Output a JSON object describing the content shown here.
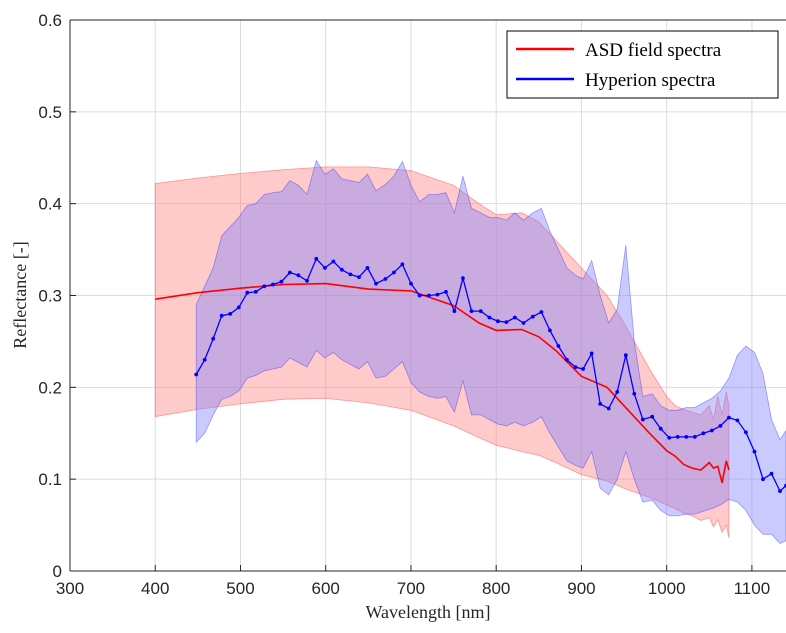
{
  "chart_data": {
    "type": "line",
    "title": "",
    "xlabel": "Wavelength [nm]",
    "ylabel": "Reflectance [-]",
    "xlim": [
      300,
      1140
    ],
    "ylim": [
      0,
      0.6
    ],
    "xticks": [
      300,
      400,
      500,
      600,
      700,
      800,
      900,
      1000,
      1100
    ],
    "yticks": [
      0,
      0.1,
      0.2,
      0.3,
      0.4,
      0.5,
      0.6
    ],
    "xtick_labels": [
      "300",
      "400",
      "500",
      "600",
      "700",
      "800",
      "900",
      "1000",
      "1100"
    ],
    "ytick_labels": [
      "0",
      "0.1",
      "0.2",
      "0.3",
      "0.4",
      "0.5",
      "0.6"
    ],
    "grid": true,
    "legend_position": "top-right",
    "series": [
      {
        "name": "ASD field spectra",
        "color": "#ff0000",
        "band_color": "#ff8080",
        "x": [
          400,
          450,
          500,
          550,
          600,
          650,
          700,
          750,
          780,
          800,
          830,
          850,
          870,
          900,
          930,
          950,
          980,
          1000,
          1010,
          1020,
          1030,
          1040,
          1050,
          1055,
          1060,
          1065,
          1070,
          1073
        ],
        "y": [
          0.296,
          0.303,
          0.308,
          0.312,
          0.313,
          0.307,
          0.305,
          0.289,
          0.27,
          0.262,
          0.263,
          0.255,
          0.24,
          0.212,
          0.2,
          0.18,
          0.15,
          0.131,
          0.125,
          0.116,
          0.112,
          0.11,
          0.118,
          0.112,
          0.114,
          0.096,
          0.12,
          0.11
        ],
        "upper": [
          0.422,
          0.428,
          0.433,
          0.437,
          0.44,
          0.44,
          0.436,
          0.42,
          0.4,
          0.388,
          0.39,
          0.38,
          0.36,
          0.33,
          0.3,
          0.27,
          0.22,
          0.19,
          0.18,
          0.176,
          0.173,
          0.17,
          0.18,
          0.165,
          0.19,
          0.17,
          0.195,
          0.18
        ],
        "lower": [
          0.168,
          0.176,
          0.182,
          0.187,
          0.188,
          0.183,
          0.175,
          0.158,
          0.145,
          0.137,
          0.13,
          0.126,
          0.118,
          0.105,
          0.098,
          0.09,
          0.08,
          0.072,
          0.068,
          0.063,
          0.06,
          0.055,
          0.058,
          0.048,
          0.056,
          0.042,
          0.05,
          0.036
        ]
      },
      {
        "name": "Hyperion spectra",
        "color": "#0000ff",
        "band_color": "#8080ff",
        "x": [
          448,
          458,
          468,
          478,
          488,
          498,
          508,
          518,
          528,
          538,
          548,
          558,
          568,
          578,
          589,
          599,
          609,
          619,
          629,
          639,
          649,
          659,
          670,
          680,
          690,
          700,
          710,
          721,
          731,
          741,
          751,
          761,
          771,
          782,
          792,
          802,
          812,
          822,
          832,
          843,
          853,
          863,
          873,
          883,
          893,
          902,
          912,
          922,
          932,
          942,
          952,
          962,
          972,
          983,
          993,
          1003,
          1013,
          1023,
          1033,
          1043,
          1053,
          1063,
          1073,
          1083,
          1093,
          1103,
          1113,
          1123,
          1133,
          1140
        ],
        "y": [
          0.214,
          0.23,
          0.253,
          0.278,
          0.28,
          0.287,
          0.303,
          0.304,
          0.31,
          0.312,
          0.315,
          0.325,
          0.322,
          0.316,
          0.34,
          0.33,
          0.337,
          0.328,
          0.323,
          0.32,
          0.33,
          0.313,
          0.318,
          0.325,
          0.334,
          0.313,
          0.3,
          0.3,
          0.301,
          0.304,
          0.283,
          0.319,
          0.283,
          0.283,
          0.276,
          0.272,
          0.271,
          0.276,
          0.27,
          0.277,
          0.282,
          0.262,
          0.245,
          0.23,
          0.222,
          0.22,
          0.237,
          0.182,
          0.177,
          0.195,
          0.235,
          0.193,
          0.165,
          0.168,
          0.155,
          0.145,
          0.146,
          0.146,
          0.146,
          0.15,
          0.153,
          0.158,
          0.167,
          0.164,
          0.151,
          0.13,
          0.1,
          0.106,
          0.087,
          0.093
        ],
        "upper": [
          0.29,
          0.31,
          0.33,
          0.365,
          0.375,
          0.385,
          0.398,
          0.4,
          0.41,
          0.412,
          0.413,
          0.425,
          0.42,
          0.41,
          0.447,
          0.432,
          0.438,
          0.427,
          0.425,
          0.423,
          0.432,
          0.414,
          0.421,
          0.43,
          0.446,
          0.42,
          0.402,
          0.41,
          0.41,
          0.412,
          0.39,
          0.43,
          0.395,
          0.39,
          0.385,
          0.385,
          0.382,
          0.39,
          0.382,
          0.39,
          0.395,
          0.37,
          0.35,
          0.33,
          0.322,
          0.318,
          0.338,
          0.3,
          0.27,
          0.285,
          0.355,
          0.25,
          0.19,
          0.193,
          0.18,
          0.175,
          0.175,
          0.178,
          0.178,
          0.183,
          0.188,
          0.196,
          0.21,
          0.235,
          0.245,
          0.238,
          0.215,
          0.165,
          0.143,
          0.153
        ],
        "lower": [
          0.14,
          0.15,
          0.17,
          0.187,
          0.19,
          0.196,
          0.21,
          0.213,
          0.218,
          0.22,
          0.222,
          0.232,
          0.227,
          0.222,
          0.24,
          0.232,
          0.238,
          0.23,
          0.225,
          0.22,
          0.228,
          0.21,
          0.212,
          0.22,
          0.228,
          0.205,
          0.195,
          0.19,
          0.188,
          0.19,
          0.173,
          0.207,
          0.17,
          0.17,
          0.165,
          0.16,
          0.158,
          0.162,
          0.158,
          0.162,
          0.168,
          0.15,
          0.135,
          0.12,
          0.115,
          0.112,
          0.13,
          0.09,
          0.083,
          0.1,
          0.13,
          0.1,
          0.075,
          0.077,
          0.066,
          0.06,
          0.06,
          0.062,
          0.062,
          0.065,
          0.068,
          0.072,
          0.078,
          0.075,
          0.066,
          0.05,
          0.04,
          0.04,
          0.03,
          0.033
        ]
      }
    ]
  }
}
